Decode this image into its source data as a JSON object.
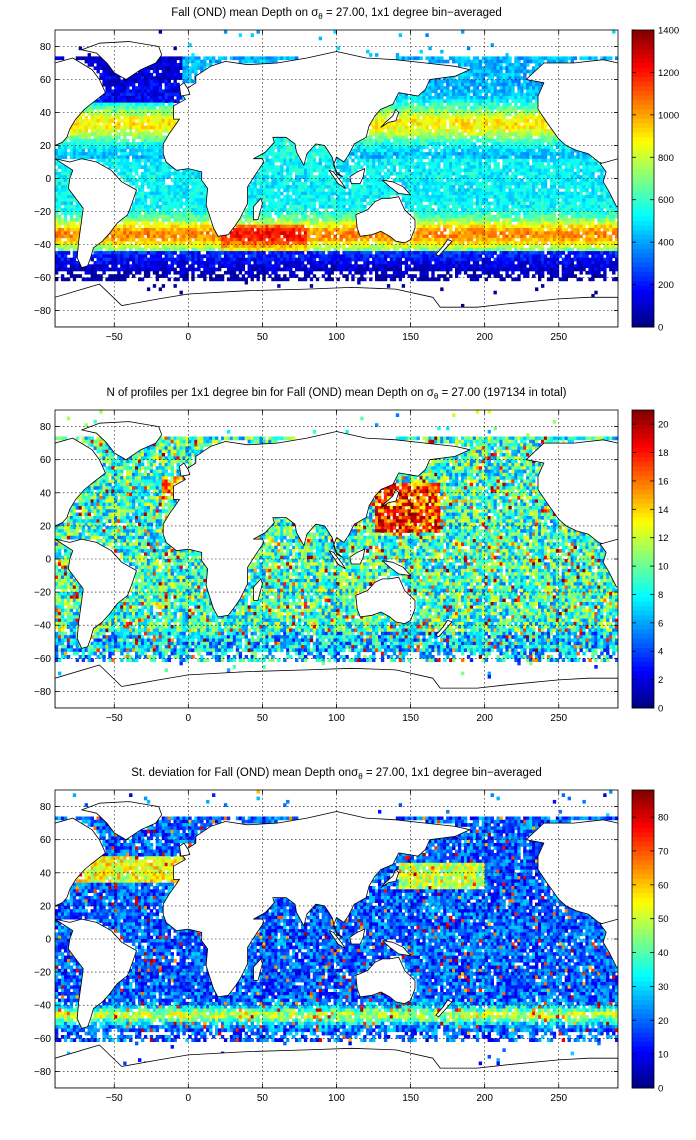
{
  "figure": {
    "colors": {
      "background": "#ffffff",
      "land": "#ffffff",
      "coast": "#000000"
    },
    "colormap": "jet"
  },
  "chart_data": [
    {
      "type": "heatmap",
      "title_parts": {
        "pre": "Fall (OND) mean Depth on ",
        "sym": "σ",
        "sub": "θ",
        "post": " = 27.00, 1x1 degree bin−averaged"
      },
      "xlabel": "",
      "ylabel": "",
      "xlim": [
        -90,
        290
      ],
      "ylim": [
        -90,
        90
      ],
      "xticks": [
        "−50",
        "0",
        "50",
        "100",
        "150",
        "200",
        "250"
      ],
      "yticks": [
        "80",
        "60",
        "40",
        "20",
        "0",
        "−20",
        "−40",
        "−60",
        "−80"
      ],
      "colorbar": {
        "min": 0,
        "max": 1400,
        "ticks": [
          "0",
          "200",
          "400",
          "600",
          "800",
          "1000",
          "1200",
          "1400"
        ]
      },
      "grid": true,
      "pattern": "mean"
    },
    {
      "type": "heatmap",
      "title_parts": {
        "pre": "N of profiles per 1x1 degree bin for Fall (OND) mean Depth on ",
        "sym": "σ",
        "sub": "θ",
        "post": " = 27.00 (197134 in total)"
      },
      "xlabel": "",
      "ylabel": "",
      "xlim": [
        -90,
        290
      ],
      "ylim": [
        -90,
        90
      ],
      "xticks": [
        "−50",
        "0",
        "50",
        "100",
        "150",
        "200",
        "250"
      ],
      "yticks": [
        "80",
        "60",
        "40",
        "20",
        "0",
        "−20",
        "−40",
        "−60",
        "−80"
      ],
      "colorbar": {
        "min": 0,
        "max": 21,
        "ticks": [
          "0",
          "2",
          "4",
          "6",
          "8",
          "10",
          "12",
          "14",
          "16",
          "18",
          "20"
        ]
      },
      "grid": true,
      "pattern": "count"
    },
    {
      "type": "heatmap",
      "title_parts": {
        "pre": "St. deviation for Fall (OND) mean Depth on",
        "sym": "σ",
        "sub": "θ",
        "post": " = 27.00, 1x1 degree bin−averaged"
      },
      "xlabel": "",
      "ylabel": "",
      "xlim": [
        -90,
        290
      ],
      "ylim": [
        -90,
        90
      ],
      "xticks": [
        "−50",
        "0",
        "50",
        "100",
        "150",
        "200",
        "250"
      ],
      "yticks": [
        "80",
        "60",
        "40",
        "20",
        "0",
        "−20",
        "−40",
        "−60",
        "−80"
      ],
      "colorbar": {
        "min": 0,
        "max": 88,
        "ticks": [
          "0",
          "10",
          "20",
          "30",
          "40",
          "50",
          "60",
          "70",
          "80"
        ]
      },
      "grid": true,
      "pattern": "std"
    }
  ]
}
